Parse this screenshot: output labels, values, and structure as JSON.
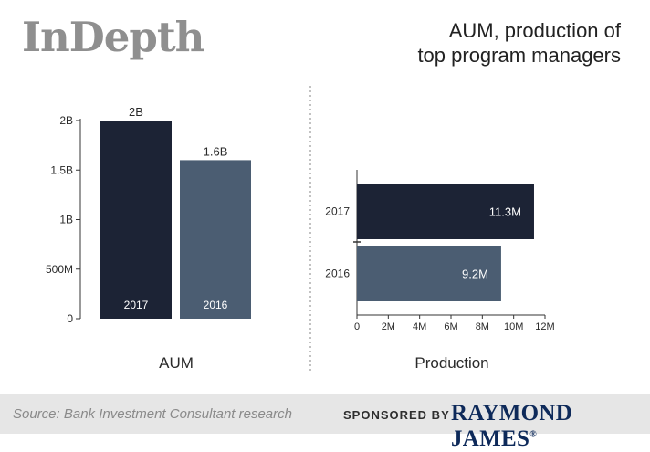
{
  "brand": "InDepth",
  "title_line1": "AUM, production of",
  "title_line2": "top program managers",
  "footer": {
    "source": "Source: Bank Investment Consultant research",
    "sponsored_label": "SPONSORED BY",
    "sponsor_name": "RAYMOND JAMES",
    "sponsor_mark": "®"
  },
  "colors": {
    "dark": "#1c2335",
    "light": "#4b5d72"
  },
  "chart_data": [
    {
      "type": "bar",
      "orientation": "vertical",
      "xlabel": "AUM",
      "categories": [
        "2017",
        "2016"
      ],
      "values": [
        2000000000,
        1600000000
      ],
      "data_labels": [
        "2B",
        "1.6B"
      ],
      "colors": [
        "#1c2335",
        "#4b5d72"
      ],
      "ylim": [
        0,
        2000000000
      ],
      "yticks": [
        0,
        500000000,
        1000000000,
        1500000000,
        2000000000
      ],
      "ytick_labels": [
        "0",
        "500M",
        "1B",
        "1.5B",
        "2B"
      ],
      "grid": false
    },
    {
      "type": "bar",
      "orientation": "horizontal",
      "xlabel": "Production",
      "categories": [
        "2017",
        "2016"
      ],
      "values": [
        11300000,
        9200000
      ],
      "data_labels": [
        "11.3M",
        "9.2M"
      ],
      "colors": [
        "#1c2335",
        "#4b5d72"
      ],
      "xlim": [
        0,
        12000000
      ],
      "xticks": [
        0,
        2000000,
        4000000,
        6000000,
        8000000,
        10000000,
        12000000
      ],
      "xtick_labels": [
        "0",
        "2M",
        "4M",
        "6M",
        "8M",
        "10M",
        "12M"
      ],
      "grid": false
    }
  ]
}
